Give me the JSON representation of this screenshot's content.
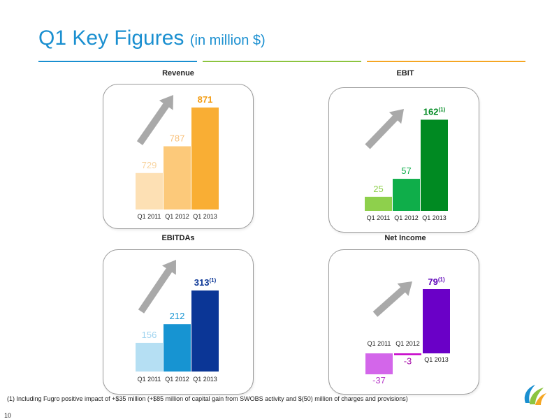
{
  "header": {
    "title": "Q1 Key Figures",
    "subtitle": "(in million $)",
    "rule_colors": [
      "#1a8fd0",
      "#8cc43f",
      "#f5a623"
    ]
  },
  "footnote": "(1) Including Fugro positive impact of +$35 million (+$85 million of capital gain from SWOBS activity and $(50) million of charges and provisions)",
  "page_number": "10",
  "chart_data": [
    {
      "type": "bar",
      "title": "Revenue",
      "categories": [
        "Q1 2011",
        "Q1 2012",
        "Q1 2013"
      ],
      "values": [
        729,
        787,
        871
      ],
      "value_labels": [
        "729",
        "787",
        "871"
      ],
      "footnote_marks": [
        "",
        "",
        ""
      ],
      "colors": [
        "#fde0b4",
        "#fcc97a",
        "#f9ae34"
      ],
      "label_colors": [
        "#f8d4a0",
        "#f9c07a",
        "#f39c12"
      ],
      "ylim": [
        650,
        880
      ]
    },
    {
      "type": "bar",
      "title": "EBIT",
      "categories": [
        "Q1 2011",
        "Q1 2012",
        "Q1 2013"
      ],
      "values": [
        25,
        57,
        162
      ],
      "value_labels": [
        "25",
        "57",
        "162"
      ],
      "footnote_marks": [
        "",
        "",
        "(1)"
      ],
      "colors": [
        "#8ed04c",
        "#0fae4a",
        "#008a22"
      ],
      "label_colors": [
        "#8ed04c",
        "#0fae4a",
        "#008a22"
      ],
      "ylim": [
        0,
        165
      ]
    },
    {
      "type": "bar",
      "title": "EBITDAs",
      "categories": [
        "Q1 2011",
        "Q1 2012",
        "Q1 2013"
      ],
      "values": [
        156,
        212,
        313
      ],
      "value_labels": [
        "156",
        "212",
        "313"
      ],
      "footnote_marks": [
        "",
        "",
        "(1)"
      ],
      "colors": [
        "#b5dff3",
        "#1794d2",
        "#0b3696"
      ],
      "label_colors": [
        "#9ed3ef",
        "#1794d2",
        "#0b3696"
      ],
      "ylim": [
        70,
        315
      ]
    },
    {
      "type": "bar",
      "title": "Net Income",
      "categories": [
        "Q1 2011",
        "Q1 2012",
        "Q1 2013"
      ],
      "values": [
        -37,
        -3,
        79
      ],
      "value_labels": [
        "-37",
        "-3",
        "79"
      ],
      "footnote_marks": [
        "",
        "",
        "(1)"
      ],
      "colors": [
        "#d366ea",
        "#c600c9",
        "#6a00c7"
      ],
      "label_colors": [
        "#b73ac9",
        "#a60aaa",
        "#5d00b8"
      ],
      "ylim": [
        -37,
        79
      ]
    }
  ]
}
